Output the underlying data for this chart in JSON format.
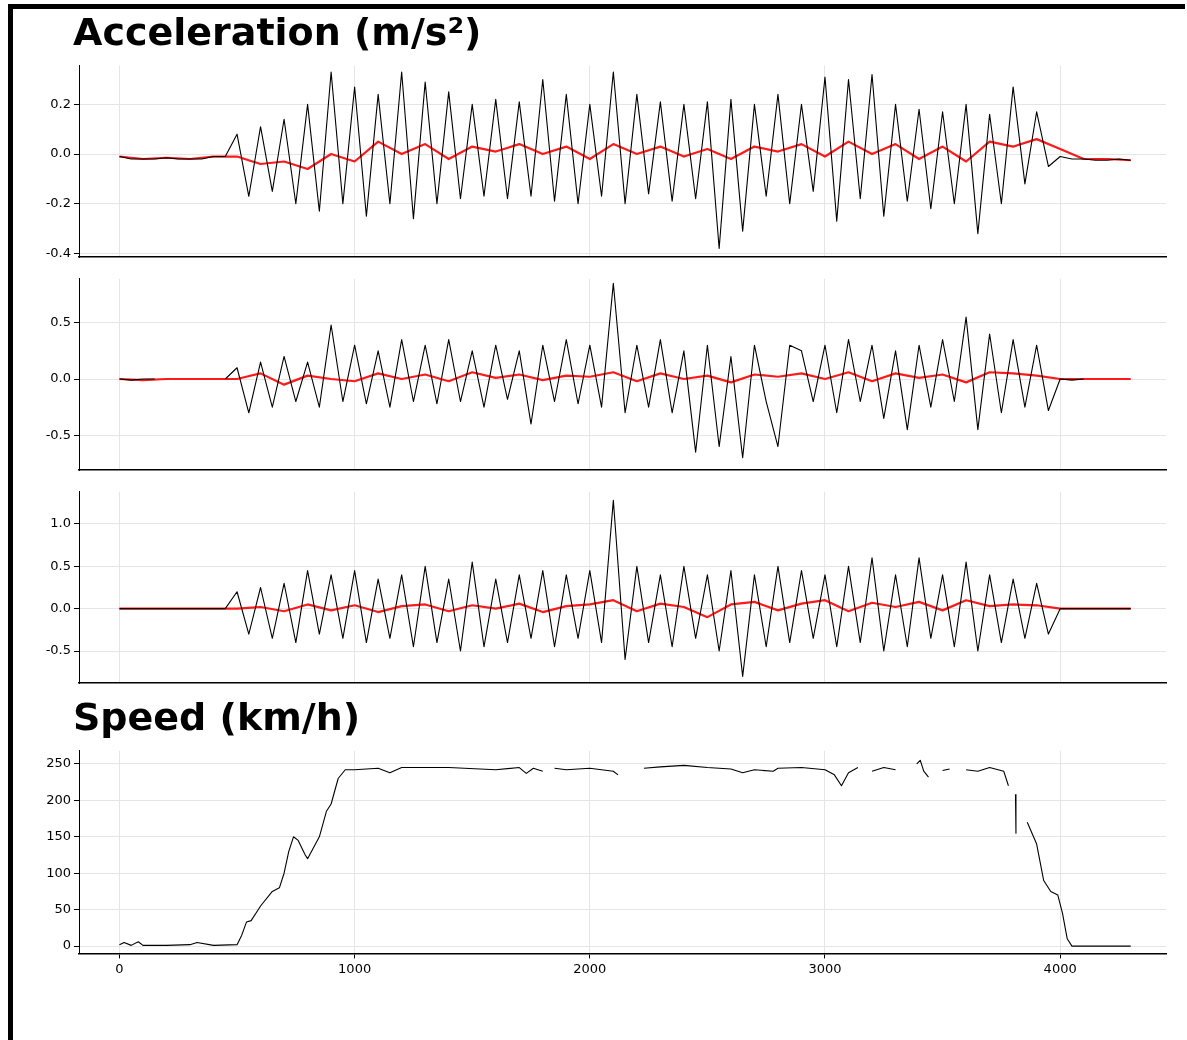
{
  "chart_data": [
    {
      "type": "line",
      "title": "Acceleration (m/s²)",
      "xlim": [
        -172,
        4450
      ],
      "xticks": [
        0,
        1000,
        2000,
        3000,
        4000
      ],
      "ylim": [
        -0.415,
        0.355
      ],
      "yticks": [
        {
          "value": 0.2,
          "label": "0.2"
        },
        {
          "value": 0.0,
          "label": "0.0"
        },
        {
          "value": -0.2,
          "label": "-0.2"
        },
        {
          "value": -0.4,
          "label": "-0.4"
        }
      ],
      "grid": true,
      "tick_labels": "y",
      "x": [
        0,
        50,
        100,
        150,
        200,
        250,
        300,
        350,
        400,
        450,
        500,
        550,
        600,
        650,
        700,
        750,
        800,
        850,
        900,
        950,
        1000,
        1050,
        1100,
        1150,
        1200,
        1250,
        1300,
        1350,
        1400,
        1450,
        1500,
        1550,
        1600,
        1650,
        1700,
        1750,
        1800,
        1850,
        1900,
        1950,
        2000,
        2050,
        2100,
        2150,
        2200,
        2250,
        2300,
        2350,
        2400,
        2450,
        2500,
        2550,
        2600,
        2650,
        2700,
        2750,
        2800,
        2850,
        2900,
        2950,
        3000,
        3050,
        3100,
        3150,
        3200,
        3250,
        3300,
        3350,
        3400,
        3450,
        3500,
        3550,
        3600,
        3650,
        3700,
        3750,
        3800,
        3850,
        3900,
        3950,
        4000,
        4050,
        4100,
        4150,
        4200,
        4250,
        4300
      ],
      "series": [
        {
          "color": "#000000",
          "values": [
            -0.01,
            -0.02,
            -0.02,
            -0.02,
            -0.015,
            -0.02,
            -0.02,
            -0.02,
            -0.01,
            -0.01,
            0.08,
            -0.17,
            0.11,
            -0.15,
            0.14,
            -0.2,
            0.2,
            -0.23,
            0.33,
            -0.2,
            0.27,
            -0.25,
            0.24,
            -0.2,
            0.33,
            -0.26,
            0.29,
            -0.2,
            0.25,
            -0.18,
            0.2,
            -0.17,
            0.22,
            -0.18,
            0.21,
            -0.17,
            0.3,
            -0.19,
            0.24,
            -0.2,
            0.2,
            -0.17,
            0.33,
            -0.2,
            0.24,
            -0.16,
            0.21,
            -0.19,
            0.2,
            -0.18,
            0.21,
            -0.38,
            0.22,
            -0.31,
            0.2,
            -0.17,
            0.24,
            -0.2,
            0.2,
            -0.15,
            0.31,
            -0.27,
            0.3,
            -0.18,
            0.32,
            -0.25,
            0.2,
            -0.19,
            0.18,
            -0.22,
            0.17,
            -0.2,
            0.2,
            -0.32,
            0.16,
            -0.2,
            0.27,
            -0.12,
            0.17,
            -0.05,
            -0.01,
            -0.02,
            -0.02,
            -0.025,
            -0.025,
            -0.02,
            -0.025
          ]
        },
        {
          "color": "#ff1a1a",
          "x": [
            0,
            100,
            200,
            300,
            400,
            500,
            600,
            700,
            800,
            900,
            1000,
            1100,
            1200,
            1300,
            1400,
            1500,
            1600,
            1700,
            1800,
            1900,
            2000,
            2100,
            2200,
            2300,
            2400,
            2500,
            2600,
            2700,
            2800,
            2900,
            3000,
            3100,
            3200,
            3300,
            3400,
            3500,
            3600,
            3700,
            3800,
            3900,
            4000,
            4100,
            4200,
            4300
          ],
          "values": [
            -0.01,
            -0.02,
            -0.015,
            -0.02,
            -0.01,
            -0.01,
            -0.04,
            -0.03,
            -0.06,
            0.0,
            -0.03,
            0.05,
            0.0,
            0.04,
            -0.02,
            0.03,
            0.01,
            0.04,
            0.0,
            0.03,
            -0.02,
            0.04,
            0.0,
            0.03,
            -0.01,
            0.02,
            -0.02,
            0.03,
            0.01,
            0.04,
            -0.01,
            0.05,
            0.0,
            0.04,
            -0.02,
            0.03,
            -0.03,
            0.05,
            0.03,
            0.06,
            0.02,
            -0.02,
            -0.02,
            -0.025
          ]
        }
      ]
    },
    {
      "type": "line",
      "xlim": [
        -172,
        4450
      ],
      "xticks": [
        0,
        1000,
        2000,
        3000,
        4000
      ],
      "ylim": [
        -0.81,
        0.89
      ],
      "yticks": [
        {
          "value": 0.5,
          "label": "0.5"
        },
        {
          "value": 0.0,
          "label": "0.0"
        },
        {
          "value": -0.5,
          "label": "-0.5"
        }
      ],
      "grid": true,
      "tick_labels": "y",
      "x": [
        0,
        50,
        100,
        150,
        200,
        250,
        300,
        350,
        400,
        450,
        500,
        550,
        600,
        650,
        700,
        750,
        800,
        850,
        900,
        950,
        1000,
        1050,
        1100,
        1150,
        1200,
        1250,
        1300,
        1350,
        1400,
        1450,
        1500,
        1550,
        1600,
        1650,
        1700,
        1750,
        1800,
        1850,
        1900,
        1950,
        2000,
        2050,
        2100,
        2150,
        2200,
        2250,
        2300,
        2350,
        2400,
        2450,
        2500,
        2550,
        2600,
        2650,
        2700,
        2750,
        2800,
        2850,
        2900,
        2950,
        3000,
        3050,
        3100,
        3150,
        3200,
        3250,
        3300,
        3350,
        3400,
        3450,
        3500,
        3550,
        3600,
        3650,
        3700,
        3750,
        3800,
        3850,
        3900,
        3950,
        4000,
        4050,
        4100
      ],
      "series": [
        {
          "color": "#000000",
          "values": [
            0,
            -0.01,
            0,
            0,
            null,
            null,
            null,
            null,
            null,
            0,
            0.1,
            -0.3,
            0.15,
            -0.25,
            0.2,
            -0.2,
            0.15,
            -0.25,
            0.48,
            -0.2,
            0.3,
            -0.22,
            0.25,
            -0.25,
            0.35,
            -0.2,
            0.3,
            -0.22,
            0.35,
            -0.2,
            0.25,
            -0.25,
            0.3,
            -0.18,
            0.25,
            -0.4,
            0.3,
            -0.2,
            0.35,
            -0.22,
            0.3,
            -0.25,
            0.85,
            -0.3,
            0.3,
            -0.25,
            0.35,
            -0.3,
            0.25,
            -0.65,
            0.3,
            -0.6,
            0.2,
            -0.7,
            0.3,
            -0.2,
            -0.6,
            0.3,
            0.25,
            -0.2,
            0.3,
            -0.3,
            0.35,
            -0.2,
            0.3,
            -0.35,
            0.25,
            -0.45,
            0.3,
            -0.25,
            0.35,
            -0.2,
            0.55,
            -0.45,
            0.4,
            -0.3,
            0.35,
            -0.25,
            0.3,
            -0.28,
            0,
            -0.01,
            0
          ]
        },
        {
          "color": "#ff1a1a",
          "x": [
            0,
            100,
            200,
            300,
            400,
            500,
            600,
            700,
            800,
            900,
            1000,
            1100,
            1200,
            1300,
            1400,
            1500,
            1600,
            1700,
            1800,
            1900,
            2000,
            2100,
            2200,
            2300,
            2400,
            2500,
            2600,
            2700,
            2800,
            2900,
            3000,
            3100,
            3200,
            3300,
            3400,
            3500,
            3600,
            3700,
            3800,
            3900,
            4000,
            4100,
            4200,
            4300
          ],
          "values": [
            0,
            -0.01,
            0,
            0,
            0,
            0,
            0.05,
            -0.05,
            0.03,
            0,
            -0.02,
            0.05,
            0,
            0.04,
            -0.02,
            0.06,
            0.01,
            0.04,
            -0.01,
            0.03,
            0.02,
            0.06,
            -0.02,
            0.05,
            0,
            0.03,
            -0.03,
            0.04,
            0.02,
            0.05,
            0,
            0.06,
            -0.02,
            0.05,
            0.01,
            0.04,
            -0.03,
            0.06,
            0.05,
            0.03,
            0,
            0,
            0,
            0
          ]
        }
      ]
    },
    {
      "type": "line",
      "xlim": [
        -172,
        4450
      ],
      "xticks": [
        0,
        1000,
        2000,
        3000,
        4000
      ],
      "ylim": [
        -0.88,
        1.38
      ],
      "yticks": [
        {
          "value": 1.0,
          "label": "1.0"
        },
        {
          "value": 0.5,
          "label": "0.5"
        },
        {
          "value": 0.0,
          "label": "0.0"
        },
        {
          "value": -0.5,
          "label": "-0.5"
        }
      ],
      "grid": true,
      "tick_labels": "y",
      "x": [
        0,
        50,
        100,
        150,
        200,
        250,
        300,
        350,
        400,
        450,
        500,
        550,
        600,
        650,
        700,
        750,
        800,
        850,
        900,
        950,
        1000,
        1050,
        1100,
        1150,
        1200,
        1250,
        1300,
        1350,
        1400,
        1450,
        1500,
        1550,
        1600,
        1650,
        1700,
        1750,
        1800,
        1850,
        1900,
        1950,
        2000,
        2050,
        2100,
        2150,
        2200,
        2250,
        2300,
        2350,
        2400,
        2450,
        2500,
        2550,
        2600,
        2650,
        2700,
        2750,
        2800,
        2850,
        2900,
        2950,
        3000,
        3050,
        3100,
        3150,
        3200,
        3250,
        3300,
        3350,
        3400,
        3450,
        3500,
        3550,
        3600,
        3650,
        3700,
        3750,
        3800,
        3850,
        3900,
        3950,
        4000,
        4050,
        4100,
        4150,
        4200,
        4250,
        4300
      ],
      "series": [
        {
          "color": "#000000",
          "values": [
            0,
            0,
            0,
            0,
            0,
            0,
            0,
            0,
            0,
            0,
            0.2,
            -0.3,
            0.25,
            -0.35,
            0.3,
            -0.4,
            0.45,
            -0.3,
            0.4,
            -0.35,
            0.45,
            -0.4,
            0.35,
            -0.35,
            0.4,
            -0.45,
            0.5,
            -0.4,
            0.35,
            -0.5,
            0.55,
            -0.45,
            0.35,
            -0.4,
            0.4,
            -0.35,
            0.45,
            -0.45,
            0.4,
            -0.35,
            0.45,
            -0.4,
            1.28,
            -0.6,
            0.5,
            -0.4,
            0.4,
            -0.45,
            0.5,
            -0.35,
            0.4,
            -0.5,
            0.45,
            -0.8,
            0.4,
            -0.45,
            0.5,
            -0.4,
            0.45,
            -0.35,
            0.4,
            -0.45,
            0.5,
            -0.4,
            0.6,
            -0.5,
            0.4,
            -0.45,
            0.6,
            -0.35,
            0.4,
            -0.45,
            0.55,
            -0.5,
            0.4,
            -0.4,
            0.35,
            -0.35,
            0.3,
            -0.3,
            0,
            0,
            0,
            0,
            0,
            0,
            0
          ]
        },
        {
          "color": "#ff1a1a",
          "x": [
            0,
            100,
            200,
            300,
            400,
            500,
            600,
            700,
            800,
            900,
            1000,
            1100,
            1200,
            1300,
            1400,
            1500,
            1600,
            1700,
            1800,
            1900,
            2000,
            2100,
            2200,
            2300,
            2400,
            2500,
            2600,
            2700,
            2800,
            2900,
            3000,
            3100,
            3200,
            3300,
            3400,
            3500,
            3600,
            3700,
            3800,
            3900,
            4000,
            4100,
            4200,
            4300
          ],
          "values": [
            0,
            0,
            0,
            0,
            0,
            0,
            0.02,
            -0.03,
            0.05,
            -0.02,
            0.04,
            -0.04,
            0.03,
            0.05,
            -0.03,
            0.04,
            0,
            0.06,
            -0.04,
            0.03,
            0.05,
            0.1,
            -0.03,
            0.06,
            0.02,
            -0.1,
            0.05,
            0.08,
            -0.02,
            0.06,
            0.1,
            -0.03,
            0.07,
            0.02,
            0.08,
            -0.02,
            0.1,
            0.03,
            0.05,
            0.04,
            0,
            0,
            0,
            0
          ]
        }
      ]
    },
    {
      "type": "line",
      "title": "Speed (km/h)",
      "xlim": [
        -172,
        4450
      ],
      "xticks": [
        0,
        1000,
        2000,
        3000,
        4000
      ],
      "ylim": [
        -10,
        268
      ],
      "yticks": [
        0,
        50,
        100,
        150,
        200,
        250
      ],
      "grid": true,
      "x": [
        0,
        20,
        50,
        80,
        100,
        200,
        300,
        330,
        400,
        500,
        520,
        540,
        560,
        600,
        650,
        680,
        700,
        720,
        740,
        760,
        790,
        800,
        850,
        880,
        900,
        930,
        960,
        1000,
        1100,
        1150,
        1200,
        1400,
        1600,
        1700,
        1730,
        1760,
        1800,
        1810,
        1850,
        1900,
        2000,
        2100,
        2120,
        2130,
        2230,
        2300,
        2400,
        2500,
        2600,
        2650,
        2700,
        2780,
        2800,
        2900,
        3000,
        3040,
        3070,
        3100,
        3140,
        3160,
        3200,
        3250,
        3300,
        3350,
        3390,
        3405,
        3420,
        3440,
        3480,
        3500,
        3530,
        3550,
        3600,
        3650,
        3700,
        3760,
        3780,
        3790,
        3810,
        3812,
        3815,
        3860,
        3900,
        3930,
        3960,
        3990,
        4010,
        4030,
        4050,
        4300
      ],
      "series": [
        {
          "color": "#000000",
          "values": [
            2,
            5,
            1,
            6,
            1,
            1,
            2,
            5,
            1,
            2,
            15,
            33,
            35,
            55,
            75,
            80,
            100,
            130,
            150,
            145,
            125,
            120,
            150,
            185,
            195,
            230,
            242,
            242,
            244,
            238,
            245,
            245,
            242,
            245,
            237,
            244,
            240,
            null,
            244,
            242,
            244,
            240,
            235,
            null,
            244,
            246,
            248,
            245,
            243,
            238,
            242,
            240,
            244,
            245,
            242,
            235,
            220,
            238,
            245,
            null,
            240,
            245,
            242,
            null,
            250,
            255,
            240,
            232,
            null,
            241,
            243,
            null,
            242,
            240,
            245,
            240,
            220,
            null,
            208,
            155,
            null,
            170,
            140,
            90,
            75,
            70,
            45,
            10,
            0,
            0
          ]
        }
      ]
    }
  ]
}
